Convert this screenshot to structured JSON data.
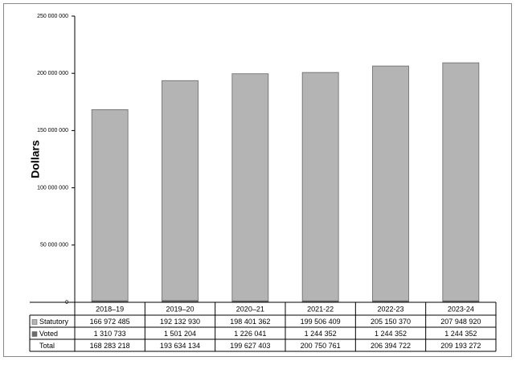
{
  "chart_data": {
    "type": "stacked-bar",
    "y_label": "Dollars",
    "categories": [
      "2018–19",
      "2019–20",
      "2020–21",
      "2021-22",
      "2022-23",
      "2023-24"
    ],
    "series": [
      {
        "name": "Voted",
        "color": "#6b6b6b",
        "values": [
          1310733,
          1501204,
          1226041,
          1244352,
          1244352,
          1244352
        ],
        "value_labels": [
          "1 310 733",
          "1 501 204",
          "1 226 041",
          "1 244 352",
          "1 244 352",
          "1 244 352"
        ]
      },
      {
        "name": "Statutory",
        "color": "#b4b4b4",
        "values": [
          166972485,
          192132930,
          198401362,
          199506409,
          205150370,
          207948920
        ],
        "value_labels": [
          "166 972 485",
          "192 132 930",
          "198 401 362",
          "199 506 409",
          "205 150 370",
          "207 948 920"
        ]
      }
    ],
    "total_row": {
      "name": "Total",
      "labels": [
        "168 283 218",
        "193 634 134",
        "199 627 403",
        "200 750 761",
        "206 394 722",
        "209 193 272"
      ]
    },
    "ylim": [
      0,
      250000000
    ],
    "yticks": [
      0,
      {
        "value": 50000000,
        "label": "50 000 000"
      },
      {
        "value": 100000000,
        "label": "100 000 000"
      },
      {
        "value": 150000000,
        "label": "150 000 000"
      },
      {
        "value": 200000000,
        "label": "200 000 000"
      },
      {
        "value": 250000000,
        "label": "250 000 000"
      }
    ],
    "grid": false
  }
}
